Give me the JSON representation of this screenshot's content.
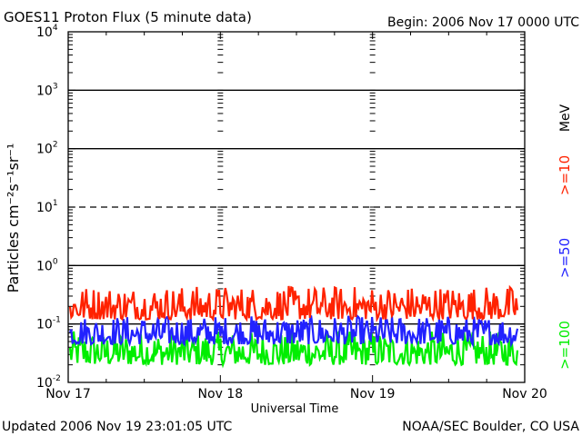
{
  "header": {
    "title": "GOES11 Proton Flux (5 minute data)",
    "begin": "Begin: 2006 Nov 17 0000 UTC"
  },
  "footer": {
    "updated": "Updated 2006 Nov 19 23:01:05 UTC",
    "credit": "NOAA/SEC Boulder, CO USA"
  },
  "legend": {
    "unit": "MeV",
    "entries": [
      {
        "label": ">=10",
        "color": "#ff2200"
      },
      {
        "label": ">=50",
        "color": "#2222ff"
      },
      {
        "label": ">=100",
        "color": "#00ee00"
      }
    ]
  },
  "chart_data": {
    "type": "line",
    "title": "GOES11 Proton Flux (5 minute data)",
    "xlabel": "Universal Time",
    "ylabel": "Particles cm⁻²s⁻¹sr⁻¹",
    "y_scale": "log",
    "ylim": [
      0.01,
      10000
    ],
    "y_ticks": [
      {
        "value": 0.01,
        "base": "10",
        "exp": "-2"
      },
      {
        "value": 0.1,
        "base": "10",
        "exp": "-1"
      },
      {
        "value": 1,
        "base": "10",
        "exp": "0"
      },
      {
        "value": 10,
        "base": "10",
        "exp": "1"
      },
      {
        "value": 100,
        "base": "10",
        "exp": "2"
      },
      {
        "value": 1000,
        "base": "10",
        "exp": "3"
      },
      {
        "value": 10000,
        "base": "10",
        "exp": "4"
      }
    ],
    "x_ticks": [
      "Nov 17",
      "Nov 18",
      "Nov 19",
      "Nov 20"
    ],
    "xlim": [
      "2006-11-17",
      "2006-11-20"
    ],
    "reference_lines": [
      {
        "value": 1000,
        "style": "solid"
      },
      {
        "value": 100,
        "style": "solid"
      },
      {
        "value": 10,
        "style": "dashed"
      },
      {
        "value": 1,
        "style": "solid"
      },
      {
        "value": 0.1,
        "style": "solid"
      }
    ],
    "grid": true,
    "series": [
      {
        "name": ">=10",
        "color": "#ff2200",
        "typical_range": [
          0.12,
          0.45
        ]
      },
      {
        "name": ">=50",
        "color": "#2222ff",
        "typical_range": [
          0.045,
          0.14
        ]
      },
      {
        "name": ">=100",
        "color": "#00ee00",
        "typical_range": [
          0.02,
          0.075
        ]
      }
    ]
  }
}
